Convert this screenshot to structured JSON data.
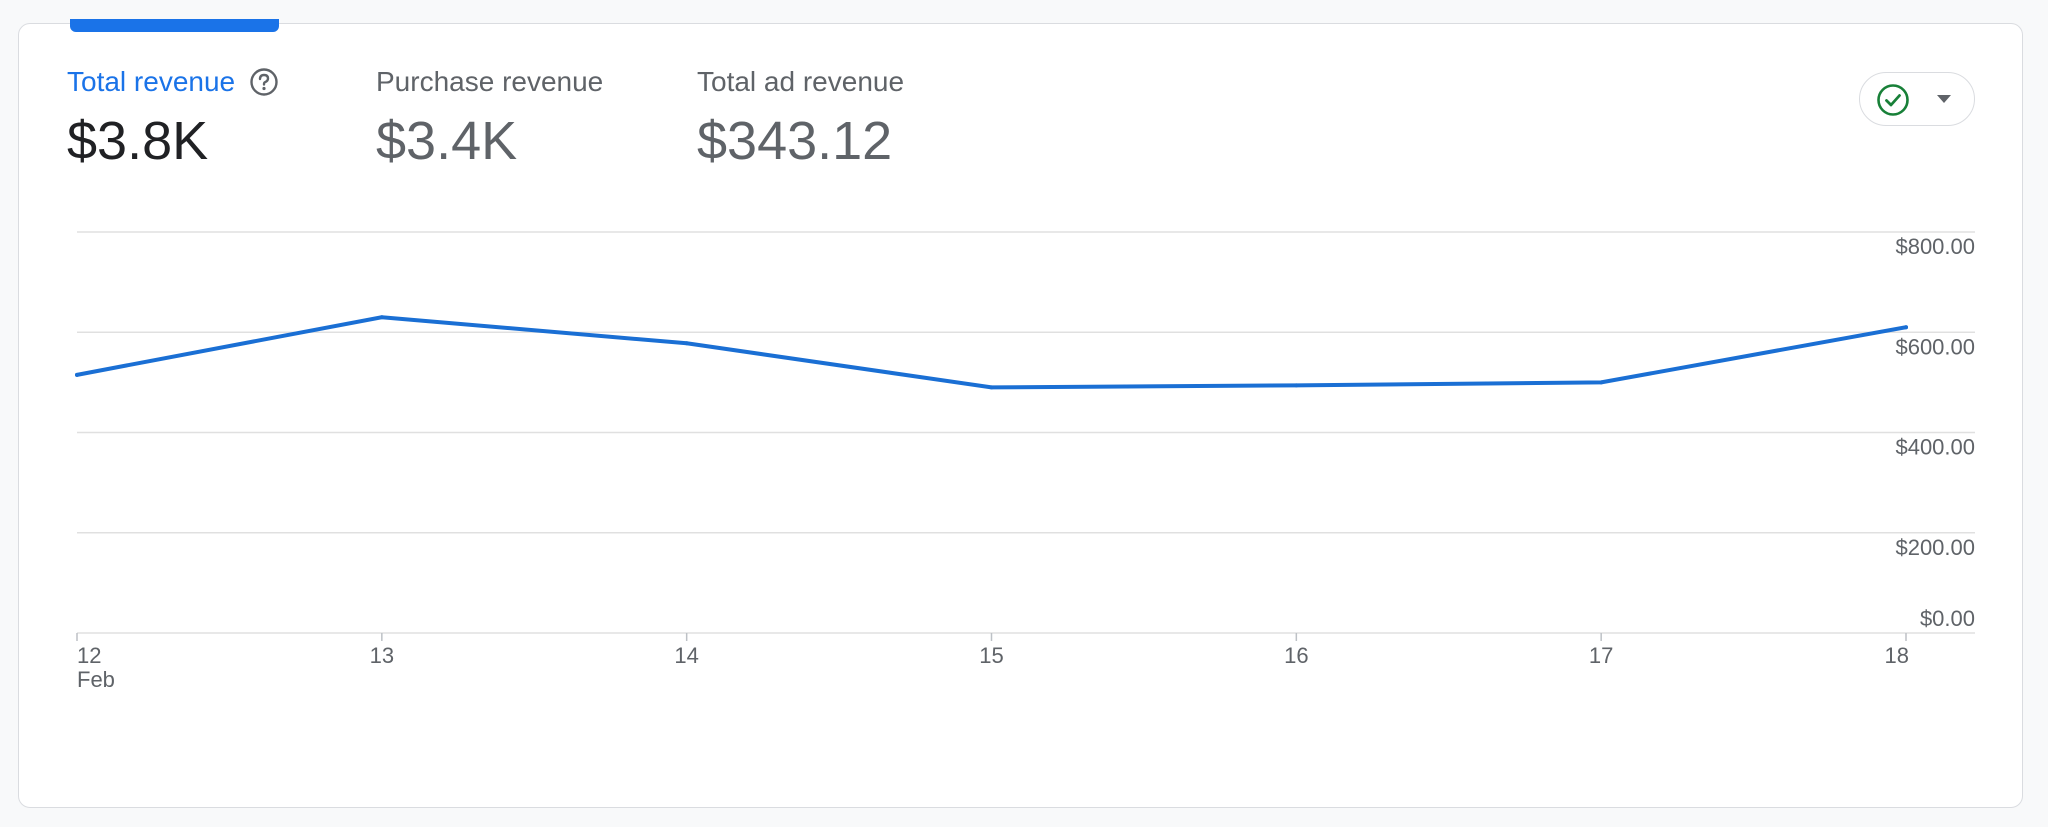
{
  "metrics": {
    "total_revenue": {
      "label": "Total revenue",
      "value": "$3.8K"
    },
    "purchase_revenue": {
      "label": "Purchase revenue",
      "value": "$3.4K"
    },
    "total_ad_revenue": {
      "label": "Total ad revenue",
      "value": "$343.12"
    }
  },
  "status_toggle": {
    "icon": "check-circle-icon",
    "icon_color": "#188038"
  },
  "colors": {
    "accent": "#1a73e8",
    "line": "#1a6fd4",
    "grid": "#e0e0e0"
  },
  "chart_data": {
    "type": "line",
    "title": "",
    "xlabel": "",
    "ylabel": "",
    "categories": [
      "12",
      "13",
      "14",
      "15",
      "16",
      "17",
      "18"
    ],
    "x_sublabels": [
      "Feb",
      "",
      "",
      "",
      "",
      "",
      ""
    ],
    "series": [
      {
        "name": "Total revenue",
        "values": [
          515,
          630,
          578,
          490,
          494,
          500,
          610
        ]
      }
    ],
    "ylim": [
      0,
      800
    ],
    "y_ticks": [
      {
        "value": 800,
        "label": "$800.00"
      },
      {
        "value": 600,
        "label": "$600.00"
      },
      {
        "value": 400,
        "label": "$400.00"
      },
      {
        "value": 200,
        "label": "$200.00"
      },
      {
        "value": 0,
        "label": "$0.00"
      }
    ],
    "grid": true
  }
}
